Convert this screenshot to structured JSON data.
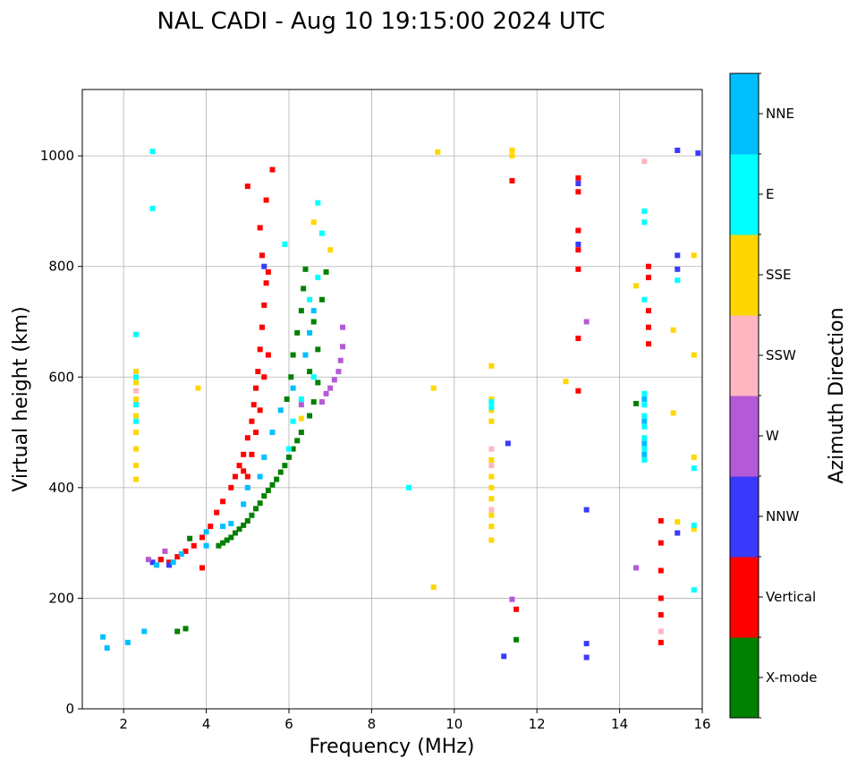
{
  "chart_data": {
    "type": "scatter",
    "title": "NAL CADI - Aug 10 19:15:00 2024 UTC",
    "xlabel": "Frequency (MHz)",
    "ylabel": "Virtual height (km)",
    "xlim": [
      1,
      16
    ],
    "ylim": [
      0,
      1120
    ],
    "xticks": [
      2,
      4,
      6,
      8,
      10,
      12,
      14,
      16
    ],
    "yticks": [
      0,
      200,
      400,
      600,
      800,
      1000
    ],
    "grid": true,
    "colorbar": {
      "label": "Azimuth Direction",
      "categories": [
        {
          "name": "X-mode",
          "color": "#008000"
        },
        {
          "name": "Vertical",
          "color": "#ff0000"
        },
        {
          "name": "NNW",
          "color": "#3a3aff"
        },
        {
          "name": "W",
          "color": "#b45ad6"
        },
        {
          "name": "SSW",
          "color": "#ffb6c1"
        },
        {
          "name": "SSE",
          "color": "#ffd700"
        },
        {
          "name": "E",
          "color": "#00ffff"
        },
        {
          "name": "NNE",
          "color": "#00bfff"
        }
      ]
    },
    "series": [
      {
        "name": "X-mode",
        "points": [
          [
            4.3,
            295
          ],
          [
            4.4,
            300
          ],
          [
            4.5,
            305
          ],
          [
            4.6,
            310
          ],
          [
            4.7,
            318
          ],
          [
            4.8,
            325
          ],
          [
            4.9,
            332
          ],
          [
            5.0,
            340
          ],
          [
            5.1,
            350
          ],
          [
            5.2,
            362
          ],
          [
            5.3,
            372
          ],
          [
            5.4,
            385
          ],
          [
            5.5,
            395
          ],
          [
            5.6,
            405
          ],
          [
            5.7,
            415
          ],
          [
            5.8,
            428
          ],
          [
            5.9,
            440
          ],
          [
            6.0,
            455
          ],
          [
            6.1,
            470
          ],
          [
            6.2,
            485
          ],
          [
            6.3,
            500
          ],
          [
            6.5,
            530
          ],
          [
            6.6,
            555
          ],
          [
            6.7,
            590
          ],
          [
            5.95,
            560
          ],
          [
            6.05,
            600
          ],
          [
            6.1,
            640
          ],
          [
            6.2,
            680
          ],
          [
            6.3,
            720
          ],
          [
            6.35,
            760
          ],
          [
            6.4,
            795
          ],
          [
            6.6,
            700
          ],
          [
            6.7,
            650
          ],
          [
            6.8,
            740
          ],
          [
            6.5,
            610
          ],
          [
            6.9,
            790
          ],
          [
            3.3,
            140
          ],
          [
            3.5,
            145
          ],
          [
            2.9,
            270
          ],
          [
            3.6,
            308
          ],
          [
            14.4,
            552
          ],
          [
            11.5,
            125
          ]
        ]
      },
      {
        "name": "Vertical",
        "points": [
          [
            2.9,
            270
          ],
          [
            3.1,
            265
          ],
          [
            3.3,
            275
          ],
          [
            3.5,
            285
          ],
          [
            3.7,
            295
          ],
          [
            3.9,
            310
          ],
          [
            4.1,
            330
          ],
          [
            4.25,
            355
          ],
          [
            4.4,
            375
          ],
          [
            4.6,
            400
          ],
          [
            4.7,
            420
          ],
          [
            4.8,
            440
          ],
          [
            4.9,
            460
          ],
          [
            5.0,
            490
          ],
          [
            5.1,
            520
          ],
          [
            5.15,
            550
          ],
          [
            5.2,
            580
          ],
          [
            5.25,
            610
          ],
          [
            5.3,
            650
          ],
          [
            5.35,
            690
          ],
          [
            5.4,
            730
          ],
          [
            5.45,
            770
          ],
          [
            5.5,
            790
          ],
          [
            5.1,
            460
          ],
          [
            5.2,
            500
          ],
          [
            5.3,
            540
          ],
          [
            5.0,
            420
          ],
          [
            5.4,
            600
          ],
          [
            5.5,
            640
          ],
          [
            5.35,
            820
          ],
          [
            5.3,
            870
          ],
          [
            5.45,
            920
          ],
          [
            5.0,
            945
          ],
          [
            5.6,
            975
          ],
          [
            4.9,
            430
          ],
          [
            3.9,
            255
          ],
          [
            13.0,
            960
          ],
          [
            13.0,
            935
          ],
          [
            13.0,
            865
          ],
          [
            13.0,
            830
          ],
          [
            13.0,
            795
          ],
          [
            13.0,
            670
          ],
          [
            13.0,
            575
          ],
          [
            14.7,
            800
          ],
          [
            14.7,
            780
          ],
          [
            14.7,
            720
          ],
          [
            14.7,
            690
          ],
          [
            14.7,
            660
          ],
          [
            15.0,
            340
          ],
          [
            15.0,
            300
          ],
          [
            15.0,
            250
          ],
          [
            15.0,
            200
          ],
          [
            15.0,
            170
          ],
          [
            15.0,
            120
          ],
          [
            11.5,
            180
          ],
          [
            11.4,
            955
          ]
        ]
      },
      {
        "name": "NNW",
        "points": [
          [
            2.7,
            265
          ],
          [
            3.1,
            260
          ],
          [
            13.0,
            950
          ],
          [
            13.0,
            840
          ],
          [
            13.2,
            360
          ],
          [
            13.2,
            118
          ],
          [
            13.2,
            93
          ],
          [
            15.4,
            1010
          ],
          [
            15.9,
            1005
          ],
          [
            15.4,
            820
          ],
          [
            15.4,
            795
          ],
          [
            15.4,
            318
          ],
          [
            11.3,
            480
          ],
          [
            11.2,
            95
          ],
          [
            5.4,
            800
          ]
        ]
      },
      {
        "name": "W",
        "points": [
          [
            6.9,
            570
          ],
          [
            7.0,
            580
          ],
          [
            7.1,
            595
          ],
          [
            7.2,
            610
          ],
          [
            7.25,
            630
          ],
          [
            7.3,
            655
          ],
          [
            7.3,
            690
          ],
          [
            6.8,
            555
          ],
          [
            6.3,
            550
          ],
          [
            2.6,
            270
          ],
          [
            3.0,
            285
          ],
          [
            13.2,
            700
          ],
          [
            14.4,
            255
          ],
          [
            11.4,
            198
          ]
        ]
      },
      {
        "name": "SSW",
        "points": [
          [
            10.9,
            470
          ],
          [
            10.9,
            440
          ],
          [
            10.9,
            360
          ],
          [
            15.0,
            140
          ],
          [
            14.6,
            990
          ],
          [
            2.3,
            575
          ]
        ]
      },
      {
        "name": "SSE",
        "points": [
          [
            2.3,
            415
          ],
          [
            2.3,
            440
          ],
          [
            2.3,
            470
          ],
          [
            2.3,
            500
          ],
          [
            2.3,
            530
          ],
          [
            2.3,
            560
          ],
          [
            2.3,
            590
          ],
          [
            2.3,
            610
          ],
          [
            10.9,
            330
          ],
          [
            10.9,
            350
          ],
          [
            10.9,
            380
          ],
          [
            10.9,
            400
          ],
          [
            10.9,
            420
          ],
          [
            10.9,
            450
          ],
          [
            10.9,
            520
          ],
          [
            10.9,
            540
          ],
          [
            10.9,
            560
          ],
          [
            10.9,
            620
          ],
          [
            10.9,
            305
          ],
          [
            9.6,
            1007
          ],
          [
            9.5,
            580
          ],
          [
            9.5,
            220
          ],
          [
            11.4,
            1010
          ],
          [
            11.4,
            1000
          ],
          [
            12.7,
            592
          ],
          [
            14.4,
            765
          ],
          [
            15.3,
            685
          ],
          [
            15.3,
            535
          ],
          [
            15.4,
            338
          ],
          [
            15.8,
            820
          ],
          [
            15.8,
            640
          ],
          [
            15.8,
            455
          ],
          [
            15.8,
            325
          ],
          [
            6.6,
            880
          ],
          [
            7.0,
            830
          ],
          [
            6.3,
            525
          ],
          [
            3.8,
            580
          ]
        ]
      },
      {
        "name": "E",
        "points": [
          [
            2.3,
            520
          ],
          [
            2.3,
            550
          ],
          [
            2.3,
            600
          ],
          [
            2.3,
            677
          ],
          [
            2.7,
            1008
          ],
          [
            2.7,
            905
          ],
          [
            6.0,
            470
          ],
          [
            6.1,
            520
          ],
          [
            6.3,
            560
          ],
          [
            6.6,
            600
          ],
          [
            6.5,
            740
          ],
          [
            6.7,
            780
          ],
          [
            6.8,
            860
          ],
          [
            6.7,
            915
          ],
          [
            5.9,
            840
          ],
          [
            8.9,
            400
          ],
          [
            10.9,
            545
          ],
          [
            10.9,
            555
          ],
          [
            14.6,
            450
          ],
          [
            14.6,
            470
          ],
          [
            14.6,
            490
          ],
          [
            14.6,
            510
          ],
          [
            14.6,
            530
          ],
          [
            14.6,
            550
          ],
          [
            14.6,
            570
          ],
          [
            14.6,
            740
          ],
          [
            14.6,
            880
          ],
          [
            14.6,
            900
          ],
          [
            15.4,
            775
          ],
          [
            15.8,
            435
          ],
          [
            15.8,
            332
          ],
          [
            15.8,
            215
          ]
        ]
      },
      {
        "name": "NNE",
        "points": [
          [
            1.5,
            130
          ],
          [
            1.6,
            110
          ],
          [
            2.1,
            120
          ],
          [
            2.5,
            140
          ],
          [
            2.8,
            260
          ],
          [
            3.2,
            265
          ],
          [
            3.4,
            280
          ],
          [
            4.0,
            320
          ],
          [
            4.4,
            330
          ],
          [
            4.6,
            335
          ],
          [
            4.9,
            370
          ],
          [
            5.0,
            400
          ],
          [
            5.3,
            420
          ],
          [
            5.4,
            455
          ],
          [
            5.6,
            500
          ],
          [
            5.8,
            540
          ],
          [
            6.1,
            580
          ],
          [
            6.4,
            640
          ],
          [
            6.5,
            680
          ],
          [
            6.6,
            720
          ],
          [
            4.0,
            295
          ],
          [
            14.6,
            460
          ],
          [
            14.6,
            480
          ],
          [
            14.6,
            520
          ],
          [
            14.6,
            560
          ]
        ]
      }
    ]
  }
}
